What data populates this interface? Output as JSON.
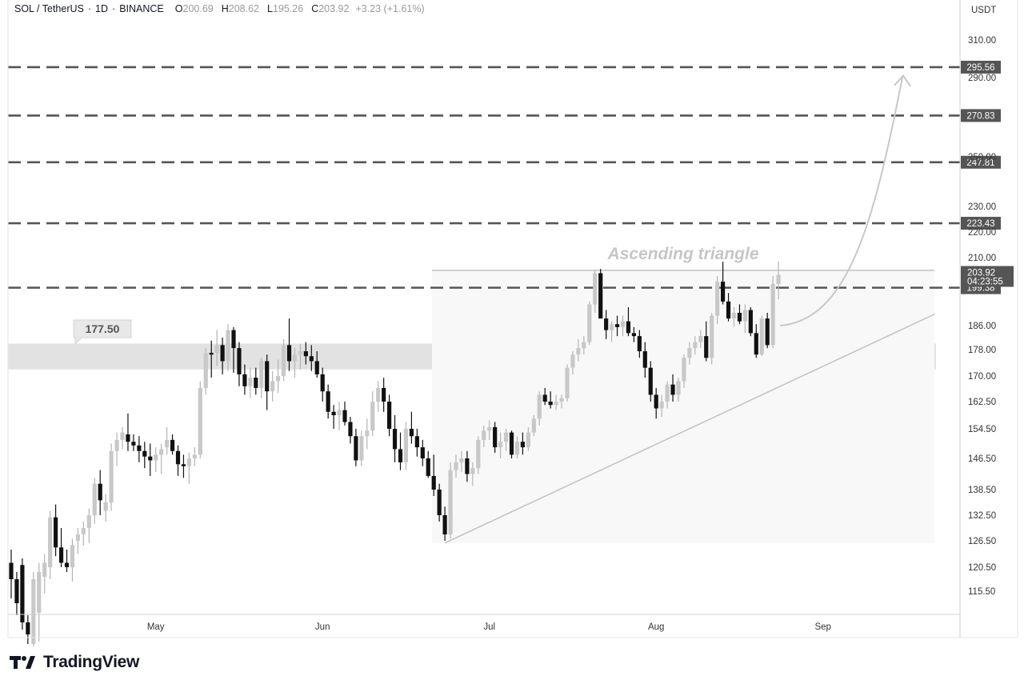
{
  "header": {
    "symbol": "SOL / TetherUS",
    "interval": "1D",
    "exchange": "BINANCE",
    "o_label": "O",
    "o_value": "200.69",
    "h_label": "H",
    "h_value": "208.62",
    "l_label": "L",
    "l_value": "195.26",
    "c_label": "C",
    "c_value": "203.92",
    "change": "+3.23 (+1.61%)"
  },
  "footer": {
    "brand": "TradingView"
  },
  "chart_data": {
    "type": "candlestick",
    "currency": "USDT",
    "y_ticks": [
      310.0,
      290.0,
      250.0,
      230.0,
      220.0,
      210.0,
      186.0,
      178.0,
      170.0,
      162.5,
      154.5,
      146.5,
      138.5,
      132.5,
      126.5,
      120.5,
      115.5
    ],
    "x_ticks": [
      "May",
      "Jun",
      "Jul",
      "Aug",
      "Sep"
    ],
    "levels": [
      295.56,
      270.83,
      247.81,
      223.43,
      199.38
    ],
    "last_price": 203.92,
    "countdown": "04:23:55",
    "zone": {
      "low": 172.0,
      "high": 180.0,
      "label": "177.50"
    },
    "annotation": "Ascending triangle",
    "triangle": {
      "resistance": 205.5,
      "support_start": 126.0,
      "support_end": 190.0
    },
    "projection_target": 291.0,
    "candles": [
      [
        121.5,
        124.5,
        114.0,
        118.0
      ],
      [
        118.0,
        119.5,
        110.5,
        113.0
      ],
      [
        121.0,
        122.5,
        107.5,
        109.0
      ],
      [
        109.0,
        110.5,
        104.5,
        106.5
      ],
      [
        104.5,
        119.5,
        104.0,
        118.0
      ],
      [
        111.0,
        121.5,
        105.0,
        119.5
      ],
      [
        118.5,
        123.5,
        115.0,
        121.5
      ],
      [
        120.5,
        133.5,
        118.0,
        132.0
      ],
      [
        132.0,
        135.0,
        123.0,
        125.0
      ],
      [
        125.0,
        129.5,
        120.5,
        121.5
      ],
      [
        121.5,
        124.5,
        119.5,
        120.5
      ],
      [
        120.5,
        127.0,
        117.5,
        125.5
      ],
      [
        126.5,
        129.5,
        123.5,
        128.0
      ],
      [
        128.0,
        131.0,
        125.5,
        129.5
      ],
      [
        129.5,
        134.0,
        126.0,
        132.5
      ],
      [
        132.5,
        141.5,
        130.5,
        140.0
      ],
      [
        140.0,
        143.5,
        132.5,
        136.0
      ],
      [
        133.5,
        137.5,
        131.0,
        135.5
      ],
      [
        135.5,
        150.5,
        133.5,
        148.5
      ],
      [
        148.5,
        153.5,
        144.5,
        151.5
      ],
      [
        151.5,
        155.0,
        149.0,
        153.5
      ],
      [
        153.0,
        159.0,
        148.5,
        151.0
      ],
      [
        151.0,
        153.0,
        148.5,
        150.0
      ],
      [
        150.0,
        152.5,
        145.5,
        148.5
      ],
      [
        148.5,
        151.0,
        144.0,
        147.0
      ],
      [
        147.0,
        150.5,
        142.0,
        146.0
      ],
      [
        146.0,
        149.5,
        143.0,
        147.5
      ],
      [
        147.5,
        150.5,
        142.5,
        149.0
      ],
      [
        149.5,
        155.0,
        147.5,
        151.5
      ],
      [
        151.5,
        153.0,
        147.5,
        148.5
      ],
      [
        148.5,
        150.0,
        142.0,
        145.0
      ],
      [
        145.0,
        147.5,
        141.5,
        144.5
      ],
      [
        144.5,
        148.0,
        140.0,
        146.5
      ],
      [
        146.5,
        149.5,
        144.5,
        147.5
      ],
      [
        147.5,
        168.5,
        146.5,
        166.5
      ],
      [
        166.5,
        178.5,
        164.5,
        177.0
      ],
      [
        177.0,
        181.0,
        169.5,
        176.5
      ],
      [
        177.0,
        184.5,
        173.0,
        179.5
      ],
      [
        179.5,
        182.0,
        170.5,
        174.5
      ],
      [
        174.5,
        186.5,
        171.5,
        184.5
      ],
      [
        184.5,
        185.5,
        171.0,
        178.5
      ],
      [
        178.5,
        180.5,
        167.0,
        170.5
      ],
      [
        170.5,
        173.5,
        164.5,
        167.0
      ],
      [
        167.0,
        172.5,
        163.5,
        169.5
      ],
      [
        169.5,
        172.5,
        164.5,
        166.5
      ],
      [
        166.5,
        175.5,
        163.5,
        174.5
      ],
      [
        174.5,
        176.5,
        160.0,
        165.5
      ],
      [
        165.5,
        171.5,
        162.5,
        168.5
      ],
      [
        168.5,
        175.0,
        165.0,
        170.0
      ],
      [
        170.0,
        181.5,
        168.5,
        179.5
      ],
      [
        179.5,
        188.5,
        171.5,
        174.5
      ],
      [
        174.5,
        178.5,
        169.5,
        176.5
      ],
      [
        176.5,
        180.0,
        172.0,
        177.5
      ],
      [
        177.5,
        180.5,
        173.5,
        176.0
      ],
      [
        176.0,
        179.5,
        171.5,
        174.5
      ],
      [
        174.5,
        177.5,
        169.5,
        170.5
      ],
      [
        170.5,
        172.5,
        162.5,
        165.5
      ],
      [
        165.5,
        167.5,
        157.5,
        159.5
      ],
      [
        159.5,
        161.5,
        154.5,
        158.5
      ],
      [
        158.5,
        162.5,
        154.0,
        160.0
      ],
      [
        160.0,
        162.5,
        155.5,
        156.5
      ],
      [
        156.5,
        158.0,
        150.5,
        152.5
      ],
      [
        152.5,
        154.5,
        144.5,
        146.0
      ],
      [
        146.0,
        154.0,
        144.5,
        152.5
      ],
      [
        152.5,
        157.5,
        149.0,
        154.0
      ],
      [
        154.0,
        165.5,
        152.5,
        162.5
      ],
      [
        162.5,
        168.5,
        159.5,
        166.5
      ],
      [
        166.5,
        169.5,
        159.5,
        162.5
      ],
      [
        162.5,
        164.5,
        152.5,
        154.5
      ],
      [
        154.5,
        158.5,
        145.5,
        149.0
      ],
      [
        149.0,
        153.5,
        143.5,
        145.5
      ],
      [
        145.5,
        156.5,
        143.5,
        154.5
      ],
      [
        154.5,
        159.5,
        150.5,
        152.5
      ],
      [
        152.5,
        154.5,
        147.0,
        149.5
      ],
      [
        149.5,
        151.5,
        144.5,
        146.5
      ],
      [
        146.5,
        148.5,
        141.5,
        142.0
      ],
      [
        142.0,
        147.5,
        137.0,
        138.5
      ],
      [
        138.5,
        140.0,
        131.0,
        132.5
      ],
      [
        132.5,
        134.5,
        126.5,
        128.0
      ],
      [
        128.0,
        145.5,
        127.0,
        143.5
      ],
      [
        143.5,
        147.5,
        141.5,
        145.5
      ],
      [
        145.5,
        148.5,
        143.0,
        146.5
      ],
      [
        146.5,
        148.5,
        140.5,
        142.5
      ],
      [
        142.5,
        145.5,
        139.5,
        144.0
      ],
      [
        144.0,
        152.5,
        142.5,
        151.5
      ],
      [
        151.5,
        155.5,
        149.5,
        154.0
      ],
      [
        154.0,
        157.0,
        151.5,
        155.0
      ],
      [
        155.0,
        156.5,
        148.0,
        149.5
      ],
      [
        149.5,
        153.5,
        146.5,
        151.0
      ],
      [
        151.0,
        154.5,
        148.5,
        153.5
      ],
      [
        153.5,
        154.0,
        146.5,
        147.5
      ],
      [
        147.5,
        152.5,
        146.5,
        151.0
      ],
      [
        151.0,
        153.5,
        147.5,
        149.5
      ],
      [
        149.5,
        155.0,
        148.5,
        153.5
      ],
      [
        153.5,
        158.5,
        152.5,
        157.5
      ],
      [
        157.5,
        165.5,
        155.5,
        164.5
      ],
      [
        164.5,
        166.5,
        161.5,
        162.5
      ],
      [
        162.5,
        165.5,
        160.5,
        161.5
      ],
      [
        161.5,
        164.5,
        160.0,
        162.5
      ],
      [
        162.5,
        164.5,
        160.5,
        163.5
      ],
      [
        163.5,
        173.5,
        162.5,
        172.5
      ],
      [
        172.5,
        177.5,
        170.5,
        176.5
      ],
      [
        176.5,
        181.5,
        174.5,
        178.5
      ],
      [
        178.5,
        182.5,
        176.5,
        180.5
      ],
      [
        180.5,
        194.5,
        179.5,
        193.5
      ],
      [
        193.5,
        205.5,
        190.5,
        204.5
      ],
      [
        204.5,
        206.0,
        189.5,
        188.5
      ],
      [
        188.5,
        191.5,
        181.5,
        184.5
      ],
      [
        184.5,
        187.5,
        180.5,
        186.5
      ],
      [
        186.5,
        189.5,
        182.5,
        185.5
      ],
      [
        185.5,
        189.5,
        182.5,
        187.5
      ],
      [
        187.5,
        192.5,
        182.5,
        183.5
      ],
      [
        183.5,
        185.5,
        180.5,
        182.5
      ],
      [
        182.5,
        184.5,
        175.5,
        177.5
      ],
      [
        177.5,
        180.5,
        169.5,
        172.5
      ],
      [
        172.5,
        174.5,
        162.5,
        164.5
      ],
      [
        164.5,
        166.5,
        157.5,
        160.5
      ],
      [
        160.5,
        164.5,
        158.0,
        162.5
      ],
      [
        162.5,
        168.5,
        160.5,
        167.5
      ],
      [
        167.5,
        170.5,
        162.5,
        164.5
      ],
      [
        164.5,
        169.5,
        162.5,
        168.5
      ],
      [
        168.5,
        176.5,
        166.5,
        175.5
      ],
      [
        175.5,
        180.5,
        173.5,
        178.5
      ],
      [
        178.5,
        182.5,
        176.5,
        180.5
      ],
      [
        180.5,
        184.5,
        178.5,
        182.5
      ],
      [
        182.5,
        187.5,
        174.5,
        175.5
      ],
      [
        175.5,
        190.5,
        173.5,
        189.5
      ],
      [
        189.5,
        203.5,
        186.5,
        201.5
      ],
      [
        201.5,
        208.5,
        193.5,
        194.5
      ],
      [
        194.5,
        197.5,
        187.5,
        188.5
      ],
      [
        188.5,
        192.5,
        185.5,
        190.5
      ],
      [
        190.5,
        193.5,
        186.5,
        187.5
      ],
      [
        187.5,
        193.5,
        183.5,
        191.5
      ],
      [
        191.5,
        192.5,
        182.5,
        183.5
      ],
      [
        183.5,
        186.5,
        175.5,
        176.5
      ],
      [
        176.5,
        189.5,
        176.0,
        188.5
      ],
      [
        188.5,
        190.5,
        178.5,
        179.5
      ],
      [
        179.5,
        203.5,
        178.5,
        200.69
      ],
      [
        200.69,
        208.62,
        195.26,
        203.92
      ]
    ]
  }
}
